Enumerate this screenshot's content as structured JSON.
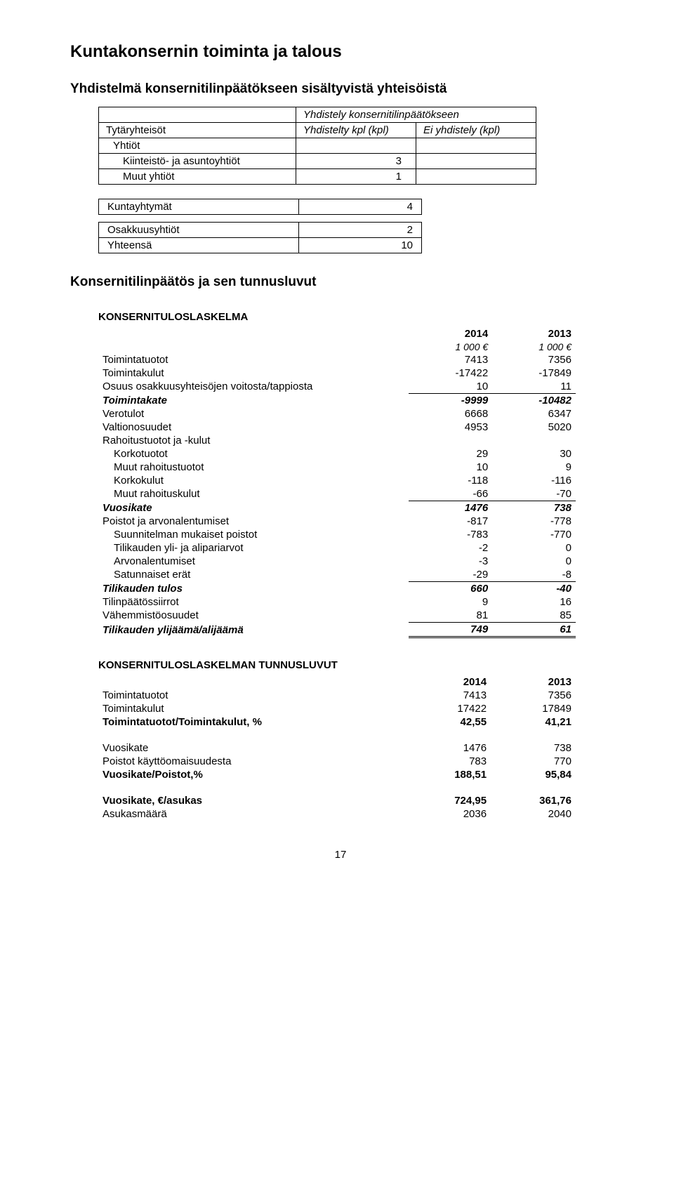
{
  "headings": {
    "main": "Kuntakonsernin toiminta ja talous",
    "sub1": "Yhdistelmä konsernitilinpäätökseen sisältyvistä yhteisöistä",
    "sub2": "Konsernitilinpäätös ja sen tunnusluvut"
  },
  "yhteisot_table": {
    "header_col1": "Yhdistely konsernitilinpäätökseen",
    "header_col2": "Yhdistelty kpl (kpl)",
    "header_col3": "Ei yhdistely (kpl)",
    "rows": [
      {
        "label": "Tytäryhteisöt",
        "v1": "",
        "v2": ""
      },
      {
        "label": "Yhtiöt",
        "v1": "",
        "v2": ""
      },
      {
        "label": "Kiinteistö- ja asuntoyhtiöt",
        "v1": "3",
        "v2": "",
        "indent": true
      },
      {
        "label": "Muut yhtiöt",
        "v1": "1",
        "v2": "",
        "indent": true
      }
    ]
  },
  "kuntayhtymat": {
    "label": "Kuntayhtymät",
    "value": "4"
  },
  "osakkuus": {
    "rows": [
      {
        "label": "Osakkuusyhtiöt",
        "value": "2"
      },
      {
        "label": "Yhteensä",
        "value": "10"
      }
    ]
  },
  "konsernituloslaskelma": {
    "title": "KONSERNITULOSLASKELMA",
    "years": [
      "2014",
      "2013"
    ],
    "unit": "1 000 €",
    "rows": [
      {
        "label": "Toimintatuotot",
        "v1": "7413",
        "v2": "7356"
      },
      {
        "label": "Toimintakulut",
        "v1": "-17422",
        "v2": "-17849"
      },
      {
        "label": "Osuus osakkuusyhteisöjen voitosta/tappiosta",
        "v1": "10",
        "v2": "11",
        "underline": true
      },
      {
        "label": "Toimintakate",
        "v1": "-9999",
        "v2": "-10482",
        "bi": true
      },
      {
        "label": "Verotulot",
        "v1": "6668",
        "v2": "6347"
      },
      {
        "label": "Valtionosuudet",
        "v1": "4953",
        "v2": "5020"
      },
      {
        "label": "Rahoitustuotot ja -kulut",
        "v1": "",
        "v2": ""
      },
      {
        "label": "Korkotuotot",
        "v1": "29",
        "v2": "30",
        "indent": true
      },
      {
        "label": "Muut rahoitustuotot",
        "v1": "10",
        "v2": "9",
        "indent": true
      },
      {
        "label": "Korkokulut",
        "v1": "-118",
        "v2": "-116",
        "indent": true
      },
      {
        "label": "Muut rahoituskulut",
        "v1": "-66",
        "v2": "-70",
        "indent": true,
        "underline": true
      },
      {
        "label": "Vuosikate",
        "v1": "1476",
        "v2": "738",
        "bi": true
      },
      {
        "label": "Poistot ja arvonalentumiset",
        "v1": "-817",
        "v2": "-778"
      },
      {
        "label": "Suunnitelman mukaiset poistot",
        "v1": "-783",
        "v2": "-770",
        "indent": true
      },
      {
        "label": "Tilikauden yli- ja alipariarvot",
        "v1": "-2",
        "v2": "0",
        "indent": true
      },
      {
        "label": "Arvonalentumiset",
        "v1": "-3",
        "v2": "0",
        "indent": true
      },
      {
        "label": "Satunnaiset erät",
        "v1": "-29",
        "v2": "-8",
        "indent": true,
        "underline": true
      },
      {
        "label": "Tilikauden tulos",
        "v1": "660",
        "v2": "-40",
        "bi": true
      },
      {
        "label": "Tilinpäätössiirrot",
        "v1": "9",
        "v2": "16"
      },
      {
        "label": "Vähemmistöosuudet",
        "v1": "81",
        "v2": "85",
        "underline": true
      },
      {
        "label": "Tilikauden ylijäämä/alijäämä",
        "v1": "749",
        "v2": "61",
        "bi": true,
        "dbl": true
      }
    ]
  },
  "tunnusluvut": {
    "title": "KONSERNITULOSLASKELMAN TUNNUSLUVUT",
    "years": [
      "2014",
      "2013"
    ],
    "groups": [
      [
        {
          "label": "Toimintatuotot",
          "v1": "7413",
          "v2": "7356"
        },
        {
          "label": "Toimintakulut",
          "v1": "17422",
          "v2": "17849"
        },
        {
          "label": "Toimintatuotot/Toimintakulut, %",
          "v1": "42,55",
          "v2": "41,21",
          "b": true
        }
      ],
      [
        {
          "label": "Vuosikate",
          "v1": "1476",
          "v2": "738"
        },
        {
          "label": "Poistot käyttöomaisuudesta",
          "v1": "783",
          "v2": "770"
        },
        {
          "label": "Vuosikate/Poistot,%",
          "v1": "188,51",
          "v2": "95,84",
          "b": true
        }
      ],
      [
        {
          "label": "Vuosikate, €/asukas",
          "v1": "724,95",
          "v2": "361,76",
          "b": true
        },
        {
          "label": "Asukasmäärä",
          "v1": "2036",
          "v2": "2040"
        }
      ]
    ]
  },
  "page_number": "17"
}
